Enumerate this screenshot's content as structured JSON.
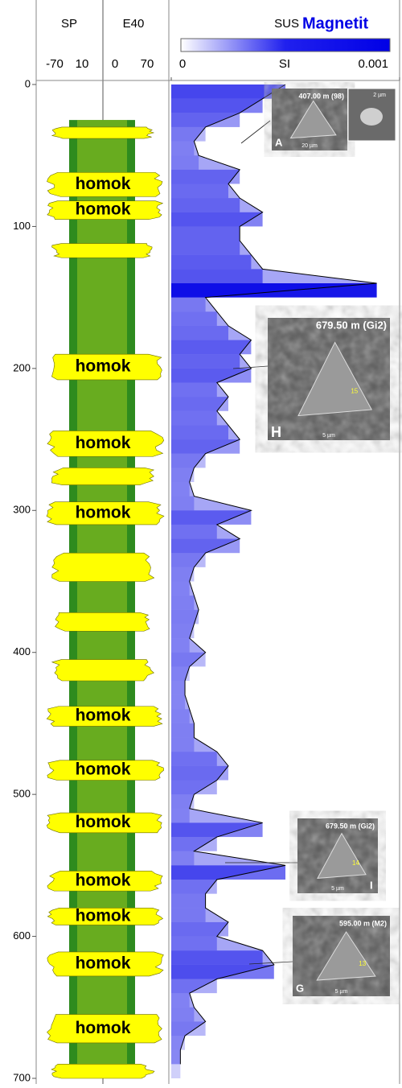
{
  "chart_data": {
    "type": "well-log",
    "ylim": [
      0,
      700
    ],
    "yticks": [
      0,
      100,
      200,
      300,
      400,
      500,
      600,
      700
    ],
    "tracks": [
      {
        "name": "SP",
        "ticks": [
          -70,
          10
        ]
      },
      {
        "name": "E40",
        "ticks": [
          0,
          70
        ]
      }
    ],
    "sus": {
      "name": "SUS",
      "mineral": "Magnetit",
      "unit": "SI",
      "color": "#0000e6",
      "xlim": [
        0,
        0.001
      ],
      "xticks": [
        0,
        0.001
      ],
      "depth": [
        0,
        10,
        20,
        30,
        40,
        50,
        60,
        70,
        80,
        90,
        100,
        110,
        120,
        130,
        140,
        150,
        160,
        170,
        180,
        190,
        200,
        210,
        220,
        230,
        240,
        250,
        260,
        270,
        280,
        290,
        300,
        310,
        320,
        330,
        340,
        350,
        360,
        370,
        380,
        390,
        400,
        410,
        420,
        430,
        440,
        450,
        460,
        470,
        480,
        490,
        500,
        510,
        520,
        530,
        540,
        550,
        560,
        570,
        580,
        590,
        600,
        610,
        620,
        630,
        640,
        650,
        660,
        670,
        680,
        690
      ],
      "values": [
        0.0005,
        0.0004,
        0.0003,
        0.00015,
        0.0001,
        0.00012,
        0.0003,
        0.00025,
        0.0003,
        0.0004,
        0.0003,
        0.0003,
        0.00035,
        0.0004,
        0.0009,
        0.00015,
        0.0002,
        0.00025,
        0.00035,
        0.0003,
        0.00035,
        0.0002,
        0.00025,
        0.0002,
        0.00025,
        0.0003,
        0.00015,
        0.0001,
        8e-05,
        0.0001,
        0.00035,
        0.0002,
        0.0003,
        0.00015,
        0.0001,
        8e-05,
        0.0001,
        0.00012,
        0.0001,
        8e-05,
        0.00015,
        8e-05,
        6e-05,
        6e-05,
        8e-05,
        0.0001,
        0.0001,
        0.0002,
        0.00025,
        0.0002,
        0.0001,
        8e-05,
        0.0004,
        0.0002,
        0.0001,
        0.0005,
        0.0002,
        0.00015,
        0.00015,
        0.00025,
        0.0002,
        0.0004,
        0.00045,
        0.0002,
        8e-05,
        0.0001,
        0.00015,
        6e-05,
        4e-05,
        4e-05
      ]
    },
    "sand_layers": [
      {
        "top": 30,
        "bottom": 38,
        "label": null
      },
      {
        "top": 62,
        "bottom": 79,
        "label": "homok"
      },
      {
        "top": 82,
        "bottom": 95,
        "label": "homok"
      },
      {
        "top": 112,
        "bottom": 122,
        "label": null
      },
      {
        "top": 190,
        "bottom": 208,
        "label": "homok"
      },
      {
        "top": 244,
        "bottom": 262,
        "label": "homok"
      },
      {
        "top": 270,
        "bottom": 282,
        "label": null
      },
      {
        "top": 294,
        "bottom": 310,
        "label": "homok"
      },
      {
        "top": 330,
        "bottom": 350,
        "label": null
      },
      {
        "top": 372,
        "bottom": 385,
        "label": null
      },
      {
        "top": 405,
        "bottom": 420,
        "label": null
      },
      {
        "top": 438,
        "bottom": 452,
        "label": "homok"
      },
      {
        "top": 476,
        "bottom": 490,
        "label": "homok"
      },
      {
        "top": 513,
        "bottom": 527,
        "label": "homok"
      },
      {
        "top": 554,
        "bottom": 568,
        "label": "homok"
      },
      {
        "top": 580,
        "bottom": 592,
        "label": "homok"
      },
      {
        "top": 611,
        "bottom": 628,
        "label": "homok"
      },
      {
        "top": 655,
        "bottom": 675,
        "label": "homok"
      },
      {
        "top": 690,
        "bottom": 700,
        "label": null
      }
    ],
    "photos": [
      {
        "caption": "407.00 m (98)",
        "letter": "A",
        "scale": "20 µm",
        "inset": "2 µm"
      },
      {
        "caption": "679.50 m (Gi2)",
        "letter": "H",
        "scale": "5 µm",
        "marker": "15"
      },
      {
        "caption": "679.50 m (Gi2)",
        "letter": "I",
        "scale": "5 µm",
        "marker": "14"
      },
      {
        "caption": "595.00 m (M2)",
        "letter": "G",
        "scale": "5 µm",
        "marker": "13"
      }
    ]
  }
}
